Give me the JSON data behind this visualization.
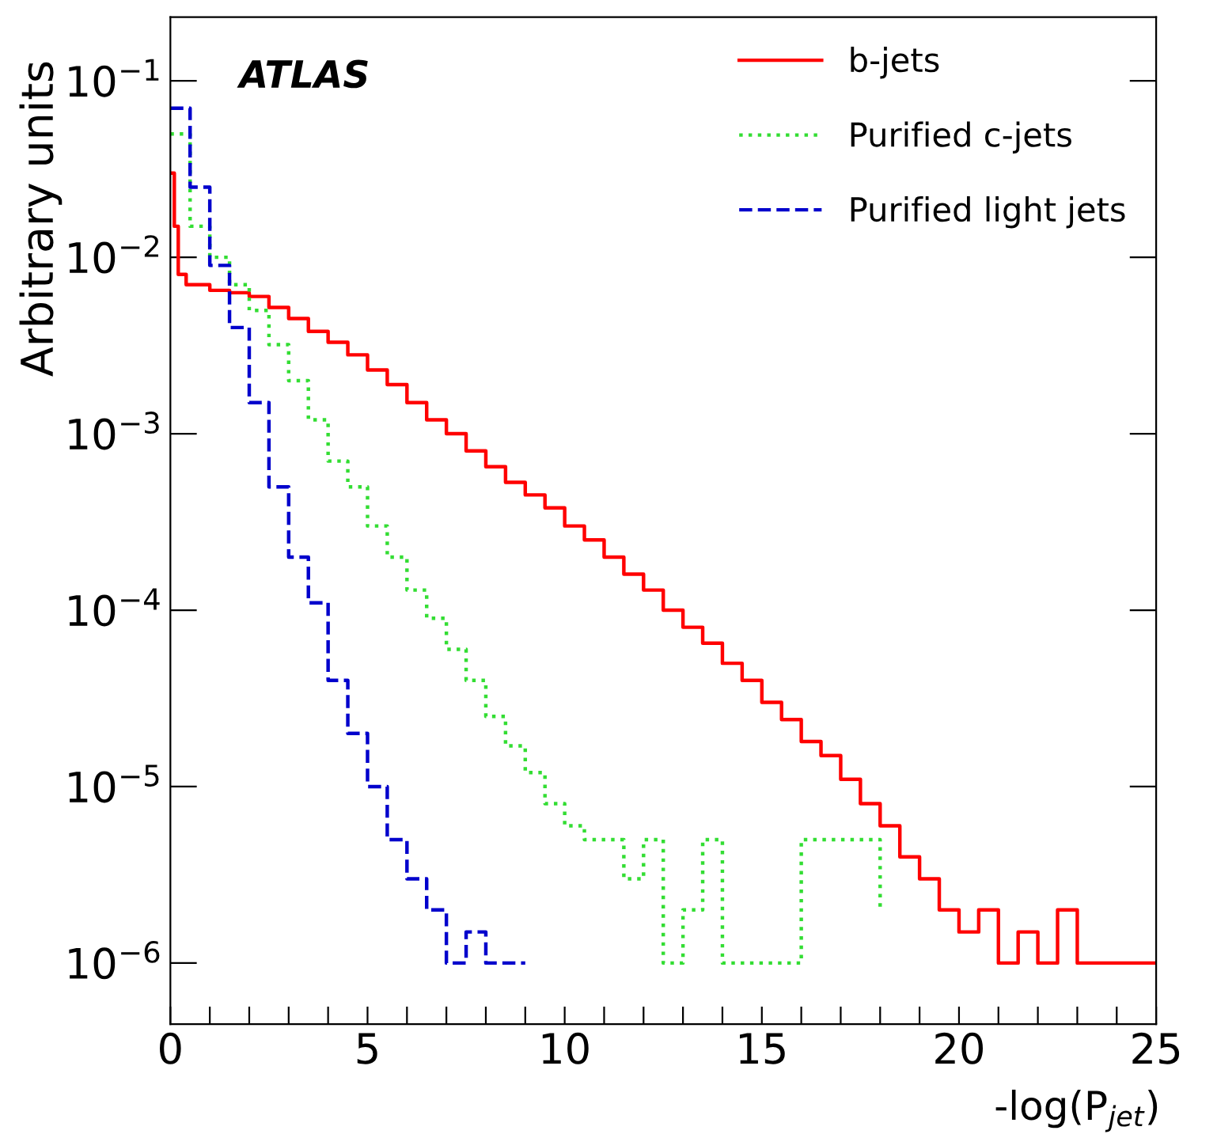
{
  "chart_data": {
    "type": "step",
    "xlabel": "-log(P$_{jet}$)",
    "ylabel": "Arbitrary units",
    "annotations": [
      "ATLAS"
    ],
    "log": "y",
    "grid": false,
    "legend": "top right",
    "xlim": [
      0,
      25
    ],
    "xticks": [
      0,
      {
        "value": 1,
        "label": null
      },
      {
        "value": 2,
        "label": null
      },
      {
        "value": 3,
        "label": null
      },
      {
        "value": 4,
        "label": null
      },
      5,
      {
        "value": 6,
        "label": null
      },
      {
        "value": 7,
        "label": null
      },
      {
        "value": 8,
        "label": null
      },
      {
        "value": 9,
        "label": null
      },
      10,
      {
        "value": 11,
        "label": null
      },
      {
        "value": 12,
        "label": null
      },
      {
        "value": 13,
        "label": null
      },
      {
        "value": 14,
        "label": null
      },
      15,
      {
        "value": 16,
        "label": null
      },
      {
        "value": 17,
        "label": null
      },
      {
        "value": 18,
        "label": null
      },
      {
        "value": 19,
        "label": null
      },
      20,
      {
        "value": 21,
        "label": null
      },
      {
        "value": 22,
        "label": null
      },
      {
        "value": 23,
        "label": null
      },
      {
        "value": 24,
        "label": null
      },
      25
    ],
    "ylim": [
      4.5e-07,
      0.23
    ],
    "yticks": [
      {
        "value": 1e-06,
        "label": "10$^{−6}$"
      },
      {
        "value": 1e-05,
        "label": "10$^{−5}$"
      },
      {
        "value": 0.0001,
        "label": "10$^{−4}$"
      },
      {
        "value": 0.001,
        "label": "10$^{−3}$"
      },
      {
        "value": 0.01,
        "label": "10$^{−2}$"
      },
      {
        "value": 0.1,
        "label": "10$^{−1}$"
      }
    ],
    "series": [
      {
        "name": "b-jets",
        "color": "#ff0000",
        "line_style": "solid",
        "x": [
          0,
          0.1,
          0.2,
          0.4,
          1,
          1.5,
          2,
          2.5,
          3,
          3.5,
          4,
          4.5,
          5,
          5.5,
          6,
          6.5,
          7,
          7.5,
          8,
          8.5,
          9,
          9.5,
          10,
          10.5,
          11,
          11.5,
          12,
          12.5,
          13,
          13.5,
          14,
          14.5,
          15,
          15.5,
          16,
          16.5,
          17,
          17.5,
          18,
          18.5,
          19,
          19.5,
          20,
          20.5,
          21,
          21.5,
          22,
          22.5,
          23,
          23.5,
          24,
          24.5,
          25
        ],
        "values": [
          0.03,
          0.015,
          0.008,
          0.007,
          0.0065,
          0.0063,
          0.006,
          0.0052,
          0.0045,
          0.0038,
          0.0033,
          0.0028,
          0.0023,
          0.0019,
          0.0015,
          0.0012,
          0.001,
          0.0008,
          0.00065,
          0.00053,
          0.00045,
          0.00038,
          0.0003,
          0.00025,
          0.0002,
          0.00016,
          0.00013,
          0.0001,
          8e-05,
          6.5e-05,
          5e-05,
          4e-05,
          3e-05,
          2.4e-05,
          1.8e-05,
          1.5e-05,
          1.1e-05,
          8e-06,
          6e-06,
          4e-06,
          3e-06,
          2e-06,
          1.5e-06,
          2e-06,
          1e-06,
          1.5e-06,
          1e-06,
          2e-06,
          1e-06,
          1e-06,
          1e-06,
          1e-06,
          1e-06
        ]
      },
      {
        "name": "Purified c-jets",
        "color": "#33dd33",
        "line_style": "dotted",
        "x": [
          0,
          0.5,
          1,
          1.5,
          2,
          2.5,
          3,
          3.5,
          4,
          4.5,
          5,
          5.5,
          6,
          6.5,
          7,
          7.5,
          8,
          8.5,
          9,
          9.5,
          10,
          10.5,
          11,
          11.5,
          12,
          12.5,
          13,
          13.5,
          14,
          16,
          18
        ],
        "values": [
          0.05,
          0.015,
          0.01,
          0.007,
          0.005,
          0.0032,
          0.002,
          0.0012,
          0.0007,
          0.0005,
          0.0003,
          0.0002,
          0.00013,
          9e-05,
          6e-05,
          4e-05,
          2.5e-05,
          1.7e-05,
          1.2e-05,
          8e-06,
          6e-06,
          5e-06,
          5e-06,
          3e-06,
          5e-06,
          1e-06,
          2e-06,
          5e-06,
          1e-06,
          5e-06,
          2e-06
        ]
      },
      {
        "name": "Purified light jets",
        "color": "#0000cc",
        "line_style": "dashed",
        "x": [
          0,
          0.5,
          1,
          1.5,
          2,
          2.5,
          3,
          3.5,
          4,
          4.5,
          5,
          5.5,
          6,
          6.5,
          7,
          7.5,
          8,
          8.5,
          9
        ],
        "values": [
          0.07,
          0.025,
          0.009,
          0.004,
          0.0015,
          0.0005,
          0.0002,
          0.00011,
          4e-05,
          2e-05,
          1e-05,
          5e-06,
          3e-06,
          2e-06,
          1e-06,
          1.5e-06,
          1e-06,
          1e-06,
          1e-06
        ]
      }
    ]
  }
}
